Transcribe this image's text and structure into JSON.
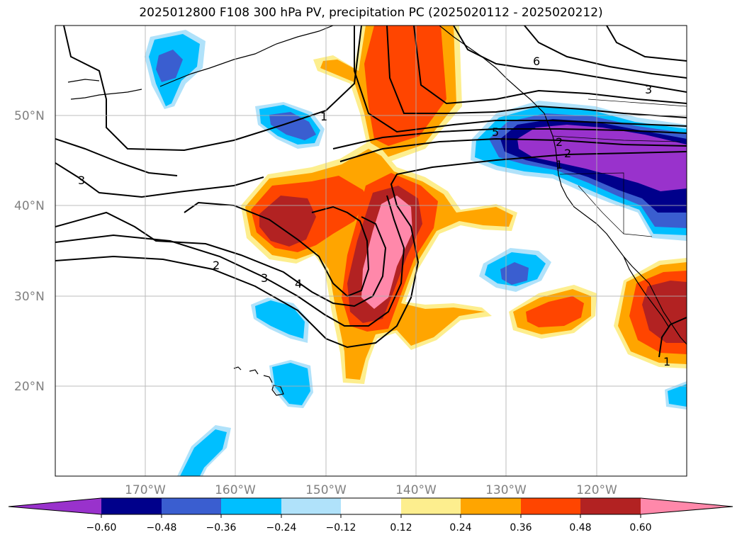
{
  "title": "2025012800 F108 300 hPa PV, precipitation PC (2025020112 - 2025020212)",
  "colors": {
    "neg060": "#9932cc",
    "neg048": "#00008b",
    "neg036": "#3a5ed0",
    "neg024": "#00bfff",
    "neg012": "#b0e2fa",
    "neutral": "#ffffff",
    "pos012": "#fdee8e",
    "pos024": "#ffa500",
    "pos036": "#ff4500",
    "pos048": "#b22222",
    "pos060": "#ff88aa"
  },
  "axes": {
    "lat_labels": [
      "50°N",
      "40°N",
      "30°N",
      "20°N"
    ],
    "lon_labels": [
      "170°W",
      "160°W",
      "150°W",
      "140°W",
      "130°W",
      "120°W"
    ]
  },
  "colorbar": {
    "ticks": [
      "−0.60",
      "−0.48",
      "−0.36",
      "−0.24",
      "−0.12",
      "0.12",
      "0.24",
      "0.36",
      "0.48",
      "0.60"
    ]
  },
  "contour_labels": [
    "1",
    "3",
    "2",
    "3",
    "4",
    "5",
    "2",
    "1",
    "6",
    "3",
    "1",
    "2"
  ]
}
